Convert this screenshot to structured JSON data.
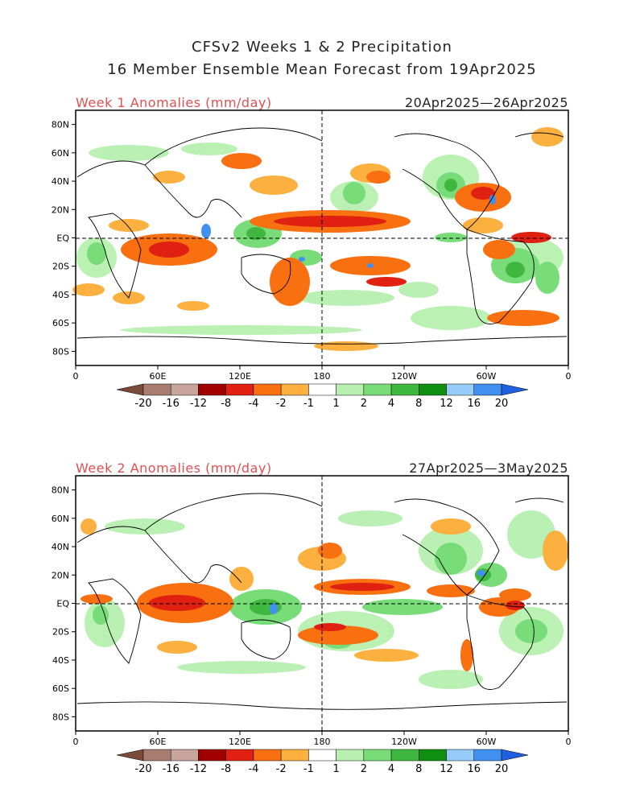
{
  "header": {
    "title_line1": "CFSv2 Weeks 1 & 2 Precipitation",
    "title_line2": "16 Member Ensemble Mean Forecast from 19Apr2025"
  },
  "panels": [
    {
      "label": "Week 1 Anomalies (mm/day)",
      "date_range": "20Apr2025—26Apr2025"
    },
    {
      "label": "Week 2 Anomalies (mm/day)",
      "date_range": "27Apr2025—3May2025"
    }
  ],
  "axes": {
    "lat_labels": [
      "80N",
      "60N",
      "40N",
      "20N",
      "EQ",
      "20S",
      "40S",
      "60S",
      "80S"
    ],
    "lon_labels": [
      "0",
      "60E",
      "120E",
      "180",
      "120W",
      "60W",
      "0"
    ]
  },
  "colorbar": {
    "labels": [
      "-20",
      "-16",
      "-12",
      "-8",
      "-4",
      "-2",
      "-1",
      "1",
      "2",
      "4",
      "8",
      "12",
      "16",
      "20"
    ],
    "colors": [
      "#7a4a3a",
      "#a87c6e",
      "#c8a59c",
      "#a00000",
      "#e02010",
      "#f87010",
      "#fbb040",
      "#ffffff",
      "#b8f0b0",
      "#78dc78",
      "#40b840",
      "#109010",
      "#98ccf8",
      "#4090f0",
      "#2060e0"
    ]
  },
  "colors": {
    "dry_strong": "#e02010",
    "dry": "#f87010",
    "dry_weak": "#fbb040",
    "wet_weak": "#b8f0b0",
    "wet": "#78dc78",
    "wet_strong": "#40b840",
    "wet_extreme": "#4090f0",
    "title_red": "#e05050"
  }
}
